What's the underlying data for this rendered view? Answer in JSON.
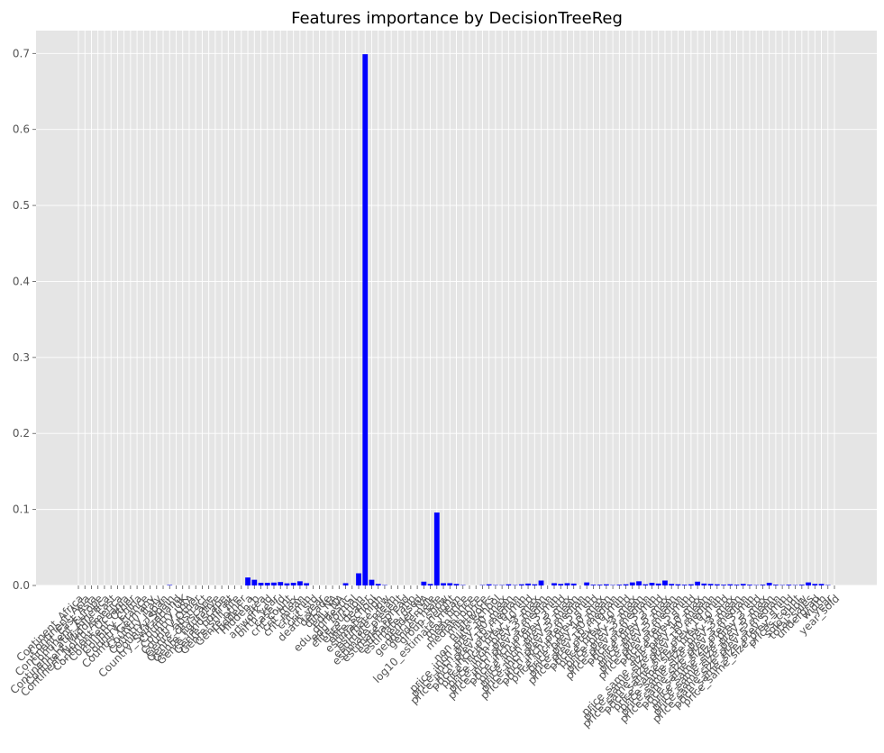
{
  "chart_data": {
    "type": "bar",
    "title": "Features importance by DecisionTreeReg",
    "xlabel": "",
    "ylabel": "",
    "ylim": [
      0,
      0.73
    ],
    "yticks": [
      0.0,
      0.1,
      0.2,
      0.3,
      0.4,
      0.5,
      0.6,
      0.7
    ],
    "ytick_labels": [
      "0.0",
      "0.1",
      "0.2",
      "0.3",
      "0.4",
      "0.5",
      "0.6",
      "0.7"
    ],
    "grid": true,
    "legend": "none",
    "colors": {
      "bar": "#0000ff",
      "plot_background": "#e5e5e5",
      "grid": "#ffffff",
      "text": "#555555",
      "title": "#000000"
    },
    "categories": [
      "Continent_Africa",
      "Continent_Asia",
      "Continent_East_Asia",
      "Continent_Europe",
      "Continent_Latin_America",
      "Continent_Middle_East",
      "Continent_North_America",
      "Continent_Oceania",
      "Continent_Other",
      "Country_China",
      "Country_France",
      "Country_Germany",
      "Country_Italy",
      "Country_Japan",
      "Country_Spain",
      "Country_Switzerland",
      "Country_UK",
      "Country_USA",
      "Country_Other",
      "Genre_abstract",
      "Genre_cityscape",
      "Genre_figurative",
      "Genre_landscape",
      "Genre_portrait",
      "Genre_still_life",
      "Genre_other",
      "Hidden_a",
      "Hidden_b",
      "area",
      "artwork_id",
      "birth_year",
      "case_id",
      "crit_count",
      "crit_max",
      "crit_mean",
      "crit_min",
      "crit_std",
      "death_year",
      "decade",
      "dim_NA",
      "edu_NA",
      "edu_domestic",
      "edu_formal",
      "elite_auction",
      "elite_dealer",
      "elite_school",
      "estimate_high",
      "estimate_low",
      "estimate_mean",
      "estimate_present",
      "estimate_spread",
      "estimate_ratio",
      "estimate_used",
      "gender_NA",
      "gender_female",
      "gender_male",
      "group_show",
      "height",
      "log10_estimate_mean",
      "max_price",
      "mean_price",
      "median_price",
      "min_price",
      "n_artworks",
      "non_elite_school",
      "price_inch_prev_10_max",
      "price_inch_prev_10_mean",
      "price_inch_prev_10_median",
      "price_inch_prev_10_min",
      "price_inch_prev_10_std",
      "price_inch_prev_3_max",
      "price_inch_prev_3_mean",
      "price_inch_prev_3_median",
      "price_inch_prev_3_min",
      "price_inch_prev_3_std",
      "price_inch_prev_5_max",
      "price_inch_prev_5_mean",
      "price_inch_prev_5_median",
      "price_inch_prev_5_min",
      "price_inch_prev_5_std",
      "price_prev_10_max",
      "price_prev_10_mean",
      "price_prev_10_median",
      "price_prev_10_min",
      "price_prev_10_std",
      "price_prev_3_max",
      "price_prev_3_mean",
      "price_prev_3_median",
      "price_prev_3_min",
      "price_prev_3_std",
      "price_prev_5_max",
      "price_prev_5_mean",
      "price_prev_5_median",
      "price_prev_5_min",
      "price_prev_5_std",
      "price_same_size_prev_10_max",
      "price_same_size_prev_10_mean",
      "price_same_size_prev_10_median",
      "price_same_size_prev_10_min",
      "price_same_size_prev_10_std",
      "price_same_size_prev_3_max",
      "price_same_size_prev_3_mean",
      "price_same_size_prev_3_median",
      "price_same_size_prev_3_min",
      "price_same_size_prev_3_std",
      "price_same_size_prev_5_max",
      "price_same_size_prev_5_mean",
      "price_same_size_prev_5_median",
      "price_same_size_prev_5_min",
      "price_same_size_prev_5_std",
      "prices_count",
      "solo_show",
      "total_sales",
      "undergrad",
      "width",
      "year",
      "year_sold"
    ],
    "values": [
      0,
      0,
      0,
      0,
      0,
      0,
      0,
      0,
      0,
      0,
      0,
      0,
      0,
      0,
      0.0006,
      0,
      0,
      0,
      0,
      0,
      0,
      0,
      0,
      0,
      0,
      0,
      0.0105,
      0.0075,
      0.0035,
      0.0035,
      0.0038,
      0.0045,
      0.0028,
      0.0035,
      0.0055,
      0.003,
      0,
      0,
      0,
      0,
      0,
      0.003,
      0,
      0.016,
      0.699,
      0.0075,
      0.002,
      0.0005,
      0,
      0,
      0,
      0,
      0,
      0.005,
      0.002,
      0.096,
      0.003,
      0.003,
      0.002,
      0.0005,
      0,
      0,
      0.0005,
      0.0015,
      0.0005,
      0.0005,
      0.0015,
      0.0005,
      0.0015,
      0.0025,
      0.0015,
      0.0065,
      0,
      0.003,
      0.002,
      0.003,
      0.0025,
      0,
      0.004,
      0.001,
      0.001,
      0.0015,
      0.0005,
      0.001,
      0.0015,
      0.004,
      0.0055,
      0.0015,
      0.0035,
      0.0025,
      0.0065,
      0.002,
      0.0015,
      0.001,
      0.0015,
      0.005,
      0.0025,
      0.002,
      0.0015,
      0.001,
      0.0015,
      0.001,
      0.002,
      0.001,
      0.0005,
      0.001,
      0.0035,
      0.001,
      0.0005,
      0.001,
      0.0005,
      0.001,
      0.004,
      0.002,
      0.002,
      0.0005,
      0
    ]
  }
}
